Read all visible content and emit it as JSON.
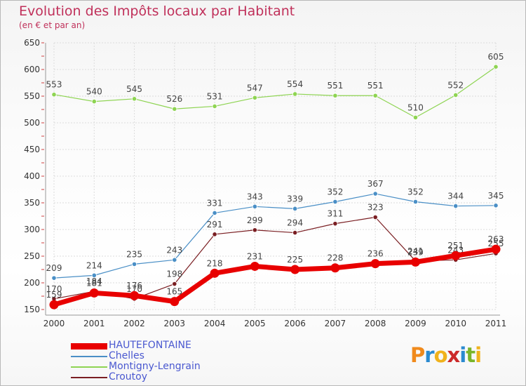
{
  "header": {
    "title": "Evolution des Impôts locaux par Habitant",
    "subtitle": "(en € et par an)"
  },
  "logo": {
    "text": "Proxiti",
    "letter_colors": [
      "#f08a1c",
      "#2a8ad0",
      "#f0b21c",
      "#cc2a2a",
      "#2a8ad0",
      "#7ab52a",
      "#f0b21c"
    ]
  },
  "colors": {
    "title": "#c0305a",
    "legend_text": "#4a58d0",
    "axis_text": "#333333",
    "grid": "#dcdcdc"
  },
  "chart_data": {
    "type": "line",
    "title": "Evolution des Impôts locaux par Habitant",
    "subtitle": "(en € et par an)",
    "xlabel": "",
    "ylabel": "",
    "ylim": [
      150,
      650
    ],
    "yticks": [
      150,
      200,
      250,
      300,
      350,
      400,
      450,
      500,
      550,
      600,
      650
    ],
    "grid": true,
    "legend_position": "bottom-left",
    "x": [
      "2000",
      "2001",
      "2002",
      "2003",
      "2004",
      "2005",
      "2006",
      "2007",
      "2008",
      "2009",
      "2010",
      "2011"
    ],
    "series": [
      {
        "name": "Montigny-Lengrain",
        "color": "#8ed452",
        "width": 1.2,
        "values": [
          553,
          540,
          545,
          526,
          531,
          547,
          554,
          551,
          551,
          510,
          552,
          605
        ]
      },
      {
        "name": "Chelles",
        "color": "#4a8fc6",
        "width": 1.2,
        "values": [
          209,
          214,
          235,
          243,
          331,
          343,
          339,
          352,
          367,
          352,
          344,
          345
        ]
      },
      {
        "name": "Croutoy",
        "color": "#7a1e22",
        "width": 1.2,
        "values": [
          170,
          184,
          170,
          198,
          291,
          299,
          294,
          311,
          323,
          241,
          243,
          255
        ]
      },
      {
        "name": "HAUTEFONTAINE",
        "color": "#e80000",
        "width": 7,
        "values": [
          159,
          181,
          176,
          165,
          218,
          231,
          225,
          228,
          236,
          239,
          251,
          263
        ]
      }
    ],
    "legend_order": [
      "HAUTEFONTAINE",
      "Chelles",
      "Montigny-Lengrain",
      "Croutoy"
    ]
  }
}
